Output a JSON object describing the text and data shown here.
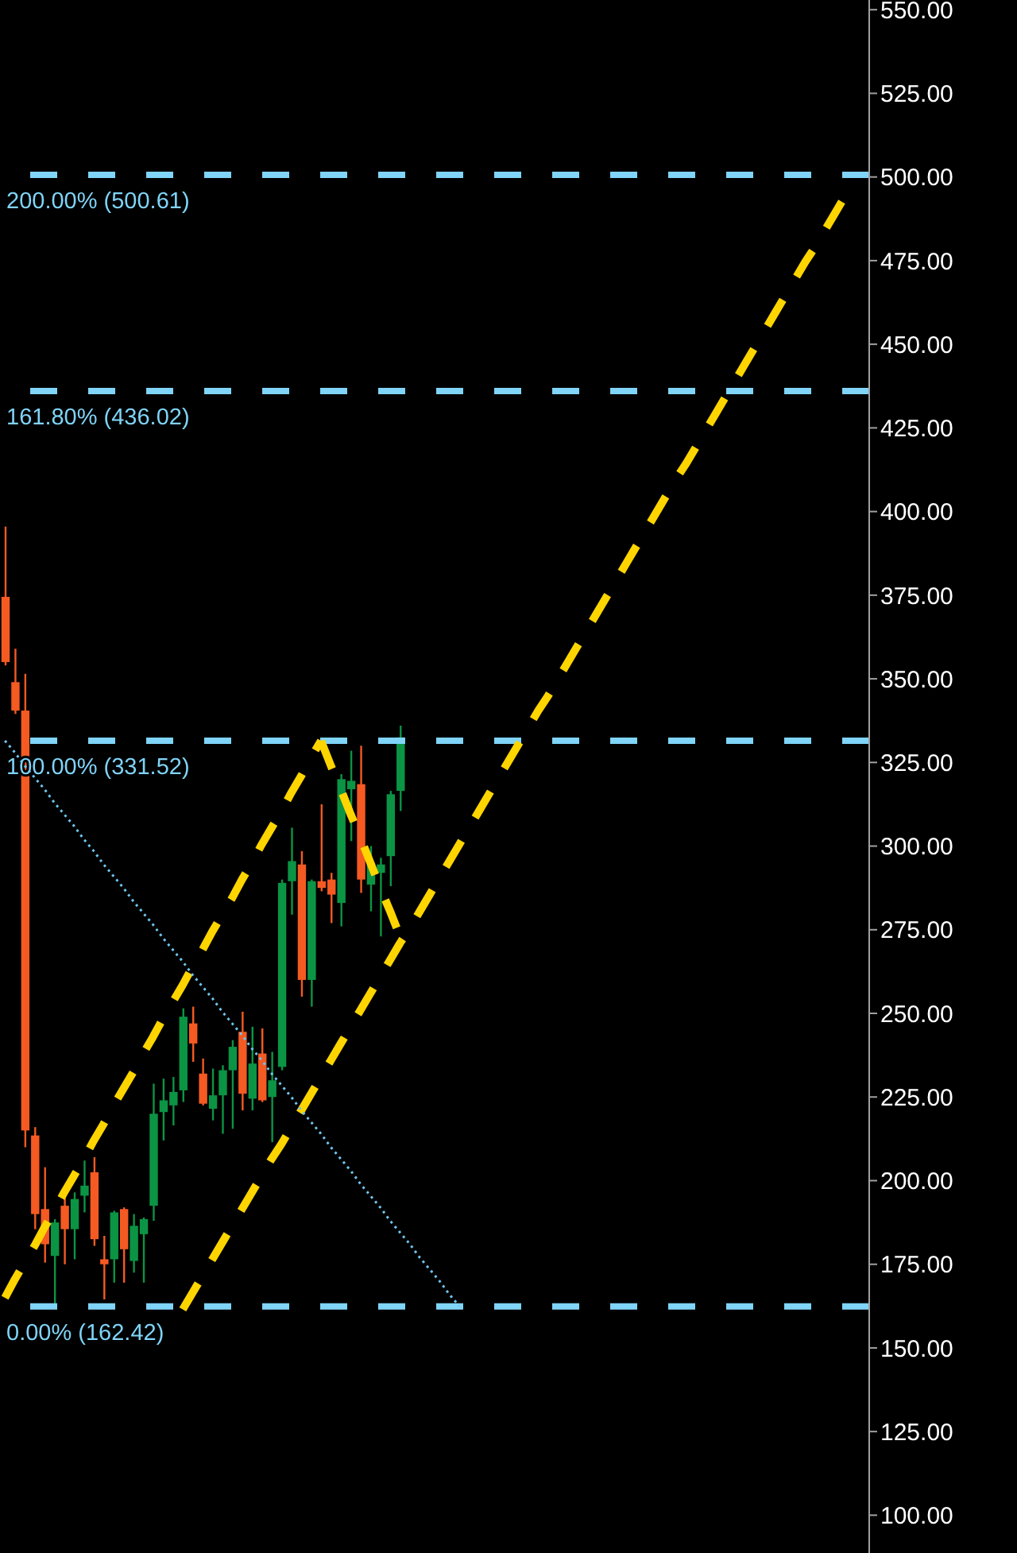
{
  "chart_data": {
    "type": "candlestick",
    "categories": [
      null,
      null,
      null,
      null,
      null,
      null,
      null,
      null,
      null,
      null,
      null,
      null,
      null,
      null,
      null,
      null,
      null,
      null,
      null,
      null,
      null,
      null,
      null,
      null,
      null,
      null,
      null,
      null,
      null,
      null,
      null,
      null,
      null,
      null,
      null,
      null,
      null,
      null,
      null,
      null,
      null,
      null,
      null,
      null,
      null,
      null,
      null,
      null,
      null,
      null,
      null,
      null,
      null,
      null,
      null,
      null,
      null,
      null,
      null,
      null,
      null,
      null,
      null,
      null,
      null,
      null,
      null,
      null,
      null,
      null,
      null,
      null,
      null,
      null,
      null,
      null,
      null,
      null,
      null,
      null,
      null,
      null,
      null,
      null,
      null,
      null,
      null,
      null
    ],
    "ohlc": [
      [
        374.5,
        395.5,
        354,
        355
      ],
      [
        349,
        359,
        339.5,
        340.5
      ],
      [
        340.5,
        351.5,
        210,
        215
      ],
      [
        213.5,
        216,
        185.5,
        190
      ],
      [
        191.5,
        204,
        175.5,
        181
      ],
      [
        177.5,
        188.5,
        162.5,
        187.5
      ],
      [
        192.5,
        195.5,
        175,
        185.5
      ],
      [
        185.5,
        196.5,
        176.5,
        194.5
      ],
      [
        195.5,
        206,
        190.5,
        198.5
      ],
      [
        202.5,
        207,
        180.5,
        182.5
      ],
      [
        176.5,
        183.5,
        164.5,
        175
      ],
      [
        176.5,
        191,
        169.5,
        190.5
      ],
      [
        191.5,
        192,
        169.5,
        179.5
      ],
      [
        176,
        190,
        172.5,
        186.5
      ],
      [
        184,
        189,
        169.5,
        188.5
      ],
      [
        192.5,
        229,
        188,
        220
      ],
      [
        220.5,
        230.5,
        212,
        224
      ],
      [
        222.5,
        231,
        216.5,
        226.5
      ],
      [
        227,
        251.5,
        223.5,
        249
      ],
      [
        247,
        252,
        235.5,
        241
      ],
      [
        232,
        236.5,
        222.5,
        223
      ],
      [
        221.5,
        233.5,
        218,
        225.5
      ],
      [
        225.5,
        234.5,
        214,
        233
      ],
      [
        233,
        242,
        215.5,
        240
      ],
      [
        244.5,
        250.5,
        221,
        226
      ],
      [
        224.5,
        246,
        221,
        235
      ],
      [
        238,
        245.5,
        223.5,
        224
      ],
      [
        225,
        238.5,
        211.5,
        230
      ],
      [
        234,
        290,
        233,
        289
      ],
      [
        289.5,
        305.5,
        279.5,
        295.5
      ],
      [
        294.5,
        298.5,
        255,
        260
      ],
      [
        260,
        290,
        252,
        289.5
      ],
      [
        289.5,
        312.5,
        286.5,
        287.5
      ],
      [
        290,
        292,
        277,
        285.5
      ],
      [
        283,
        321.5,
        276,
        320
      ],
      [
        317,
        328.5,
        301.5,
        319.5
      ],
      [
        318.5,
        330,
        286,
        290
      ],
      [
        288.5,
        300,
        280.5,
        295
      ],
      [
        292,
        296.5,
        273,
        294.5
      ],
      [
        297,
        316.5,
        288,
        315.5
      ],
      [
        316.5,
        336,
        310.5,
        332.5
      ],
      null,
      null,
      null,
      null,
      null,
      null,
      null,
      null,
      null,
      null,
      null,
      null,
      null,
      null,
      null,
      null,
      null,
      null,
      null,
      null,
      null,
      null,
      null,
      null,
      null,
      null,
      null,
      null,
      null,
      null,
      null,
      null,
      null,
      null,
      null,
      null,
      null,
      null,
      null,
      null,
      null,
      null,
      null,
      null,
      null,
      null,
      null
    ],
    "colors": [
      "#f45a22",
      "#f45a22",
      "#f45a22",
      "#f45a22",
      "#f45a22",
      "#0b9444",
      "#f45a22",
      "#0b9444",
      "#0b9444",
      "#f45a22",
      "#f45a22",
      "#0b9444",
      "#f45a22",
      "#0b9444",
      "#0b9444",
      "#0b9444",
      "#0b9444",
      "#0b9444",
      "#0b9444",
      "#f45a22",
      "#f45a22",
      "#0b9444",
      "#0b9444",
      "#0b9444",
      "#f45a22",
      "#0b9444",
      "#f45a22",
      "#0b9444",
      "#0b9444",
      "#0b9444",
      "#f45a22",
      "#0b9444",
      "#f45a22",
      "#f45a22",
      "#0b9444",
      "#0b9444",
      "#f45a22",
      "#0b9444",
      "#0b9444",
      "#0b9444",
      "#0b9444",
      null,
      null,
      null,
      null,
      null,
      null,
      null,
      null,
      null,
      null,
      null,
      null,
      null,
      null,
      null,
      null,
      null,
      null,
      null,
      null,
      null,
      null,
      null,
      null,
      null,
      null,
      null,
      null,
      null,
      null,
      null,
      null,
      null,
      null,
      null,
      null,
      null,
      null,
      null,
      null,
      null,
      null,
      null,
      null,
      null,
      null,
      null
    ],
    "series": [
      {
        "type": "line",
        "color": "#ffd500",
        "line_style": "dashed",
        "values": [
          165,
          170.5,
          175.5,
          180.5,
          186,
          191,
          196.5,
          201.5,
          206.5,
          212,
          217,
          222.5,
          227.5,
          232.5,
          238,
          243,
          248.5,
          253.5,
          258.5,
          264,
          269,
          274.5,
          279.5,
          284.5,
          290,
          295,
          300.5,
          305.5,
          310.5,
          316,
          321,
          326.5,
          331.5,
          null,
          null,
          null,
          null,
          null,
          null,
          null,
          null,
          null,
          null,
          null,
          null,
          null,
          null,
          null,
          null,
          null,
          null,
          null,
          null,
          null,
          null,
          null,
          null,
          null,
          null,
          null,
          null,
          null,
          null,
          null,
          null,
          null,
          null,
          null,
          null,
          null,
          null,
          null,
          null,
          null,
          null,
          null,
          null,
          null,
          null,
          null,
          null,
          null,
          null,
          null,
          null,
          null,
          null,
          null
        ]
      },
      {
        "type": "line",
        "color": "#ffd500",
        "line_style": "dashed",
        "values": [
          null,
          null,
          null,
          null,
          null,
          null,
          null,
          null,
          null,
          null,
          null,
          null,
          null,
          null,
          null,
          null,
          null,
          null,
          null,
          null,
          null,
          null,
          null,
          null,
          null,
          null,
          null,
          null,
          null,
          null,
          null,
          null,
          331.5,
          324,
          317,
          309.5,
          302.5,
          295,
          287.5,
          280.5,
          273,
          null,
          null,
          null,
          null,
          null,
          null,
          null,
          null,
          null,
          null,
          null,
          null,
          null,
          null,
          null,
          null,
          null,
          null,
          null,
          null,
          null,
          null,
          null,
          null,
          null,
          null,
          null,
          null,
          null,
          null,
          null,
          null,
          null,
          null,
          null,
          null,
          null,
          null,
          null,
          null,
          null,
          null,
          null,
          null,
          null,
          null,
          null
        ]
      },
      {
        "type": "line",
        "color": "#ffd500",
        "line_style": "dashed",
        "values": [
          null,
          null,
          null,
          null,
          null,
          null,
          null,
          null,
          null,
          null,
          null,
          null,
          null,
          null,
          null,
          null,
          null,
          null,
          161.5,
          166.5,
          171.5,
          176.5,
          181.5,
          186.5,
          191.5,
          196.5,
          201.5,
          206.5,
          211,
          216,
          221,
          226,
          231,
          236,
          241,
          246,
          251,
          256,
          261,
          266,
          271,
          275.5,
          280.5,
          285.5,
          290.5,
          295.5,
          300.5,
          305.5,
          310.5,
          315.5,
          320.5,
          325.5,
          330.5,
          335.5,
          340.5,
          345,
          350,
          355,
          360,
          365,
          370,
          375,
          380,
          385,
          390,
          395,
          400,
          405,
          410,
          414.5,
          419.5,
          424.5,
          429.5,
          434.5,
          439.5,
          444.5,
          449.5,
          454.5,
          459.5,
          464.5,
          469.5,
          474.5,
          479,
          484,
          489,
          494,
          null,
          null
        ]
      },
      {
        "type": "line",
        "color": "#6ec6ee",
        "line_style": "dotted",
        "values": [
          331.5,
          328,
          324,
          320.5,
          317,
          313,
          309.5,
          306,
          302,
          298.5,
          294.5,
          291,
          287.5,
          283.5,
          280,
          276.5,
          272.5,
          269,
          265.5,
          261.5,
          258,
          254.5,
          250.5,
          247,
          243.5,
          239.5,
          236,
          232,
          228.5,
          225,
          221,
          217.5,
          214,
          210,
          206.5,
          203,
          199,
          195.5,
          192,
          188,
          184.5,
          181,
          177,
          173.5,
          170,
          166,
          162.5,
          null,
          null,
          null,
          null,
          null,
          null,
          null,
          null,
          null,
          null,
          null,
          null,
          null,
          null,
          null,
          null,
          null,
          null,
          null,
          null,
          null,
          null,
          null,
          null,
          null,
          null,
          null,
          null,
          null,
          null,
          null,
          null,
          null,
          null,
          null,
          null,
          null,
          null,
          null,
          null,
          null
        ]
      }
    ],
    "ref_lines": [
      {
        "axis": "y",
        "value": 500.61,
        "label": "200.00% (500.61)",
        "color": "#7fd4f7",
        "line_style": "dashed"
      },
      {
        "axis": "y",
        "value": 436.02,
        "label": "161.80% (436.02)",
        "color": "#7fd4f7",
        "line_style": "dashed"
      },
      {
        "axis": "y",
        "value": 331.52,
        "label": "100.00% (331.52)",
        "color": "#7fd4f7",
        "line_style": "dashed"
      },
      {
        "axis": "y",
        "value": 162.42,
        "label": "0.00% (162.42)",
        "color": "#7fd4f7",
        "line_style": "dashed"
      }
    ],
    "ylim": [
      88.7,
      552.9
    ],
    "yticks": [
      {
        "value": 100,
        "label": "100.00"
      },
      {
        "value": 125,
        "label": "125.00"
      },
      {
        "value": 150,
        "label": "150.00"
      },
      {
        "value": 175,
        "label": "175.00"
      },
      {
        "value": 200,
        "label": "200.00"
      },
      {
        "value": 225,
        "label": "225.00"
      },
      {
        "value": 250,
        "label": "250.00"
      },
      {
        "value": 275,
        "label": "275.00"
      },
      {
        "value": 300,
        "label": "300.00"
      },
      {
        "value": 325,
        "label": "325.00"
      },
      {
        "value": 350,
        "label": "350.00"
      },
      {
        "value": 375,
        "label": "375.00"
      },
      {
        "value": 400,
        "label": "400.00"
      },
      {
        "value": 425,
        "label": "425.00"
      },
      {
        "value": 450,
        "label": "450.00"
      },
      {
        "value": 475,
        "label": "475.00"
      },
      {
        "value": 500,
        "label": "500.00"
      },
      {
        "value": 525,
        "label": "525.00"
      },
      {
        "value": 550,
        "label": "550.00"
      }
    ],
    "tick_labels": "y"
  }
}
